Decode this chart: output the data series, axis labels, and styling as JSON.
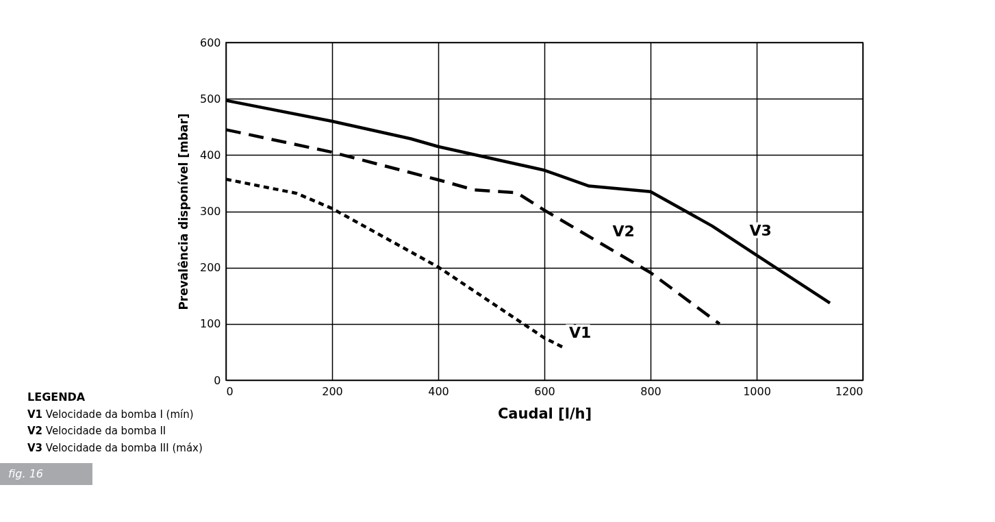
{
  "chart_data": {
    "type": "line",
    "xlabel": "Caudal [l/h]",
    "ylabel": "Prevalência disponível [mbar]",
    "xlim": [
      0,
      1200
    ],
    "xticks": [
      0,
      200,
      400,
      600,
      800,
      1000,
      1200
    ],
    "ylim": [
      0,
      600
    ],
    "yticks": [
      0,
      100,
      200,
      300,
      400,
      500,
      600
    ],
    "grid": true,
    "legend": false,
    "marker": "none",
    "series": [
      {
        "name": "V1",
        "color": "#000000",
        "line_style": "dotted",
        "x": [
          0,
          133,
          200,
          400,
          600,
          636
        ],
        "values": [
          357,
          332,
          305,
          201,
          75,
          58
        ]
      },
      {
        "name": "V2",
        "color": "#000000",
        "line_style": "dashed",
        "x": [
          0,
          200,
          400,
          468,
          548,
          600,
          800,
          930
        ],
        "values": [
          445,
          405,
          356,
          338,
          333,
          302,
          191,
          100
        ]
      },
      {
        "name": "V3",
        "color": "#000000",
        "line_style": "solid",
        "x": [
          0,
          200,
          348,
          400,
          600,
          684,
          800,
          916,
          1000,
          1138
        ],
        "values": [
          497,
          460,
          429,
          415,
          373,
          345,
          335,
          274,
          222,
          137
        ]
      }
    ],
    "annotations": [
      "LEGENDA",
      "V1 Velocidade da bomba I (mín)",
      "V2 Velocidade da bomba II",
      "V3 Velocidade da bomba III (máx)",
      "fig. 16"
    ]
  }
}
